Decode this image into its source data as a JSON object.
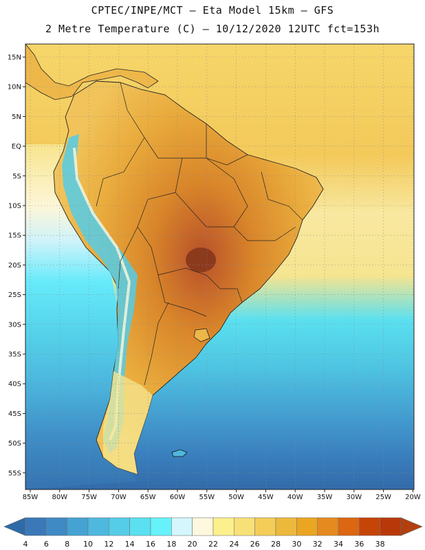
{
  "header": {
    "line1": "CPTEC/INPE/MCT –   Eta Model 15km – GFS",
    "line2": "2 Metre Temperature (C) – 10/12/2020 12UTC fct=153h"
  },
  "axes": {
    "lat_labels": [
      "15N",
      "10N",
      "5N",
      "EQ",
      "5S",
      "10S",
      "15S",
      "20S",
      "25S",
      "30S",
      "35S",
      "40S",
      "45S",
      "50S",
      "55S"
    ],
    "lon_labels": [
      "85W",
      "80W",
      "75W",
      "70W",
      "65W",
      "60W",
      "55W",
      "50W",
      "45W",
      "40W",
      "35W",
      "30W",
      "25W",
      "20W"
    ]
  },
  "colorbar": {
    "labels": [
      "4",
      "6",
      "8",
      "10",
      "12",
      "14",
      "16",
      "18",
      "20",
      "22",
      "24",
      "26",
      "28",
      "30",
      "32",
      "34",
      "36",
      "38"
    ],
    "colors": [
      "#3a78b8",
      "#3f8ac4",
      "#45a3d3",
      "#4fb8df",
      "#55cde8",
      "#5ae0f0",
      "#66f2fb",
      "#d4f6fc",
      "#fdf8de",
      "#fbf08c",
      "#f8e078",
      "#f3cd58",
      "#ecb93c",
      "#eaa522",
      "#e58a1e",
      "#dc6612",
      "#c64406",
      "#b8380a"
    ],
    "left_arrow_color": "#2f6aa8",
    "right_arrow_color": "#b2400f"
  }
}
